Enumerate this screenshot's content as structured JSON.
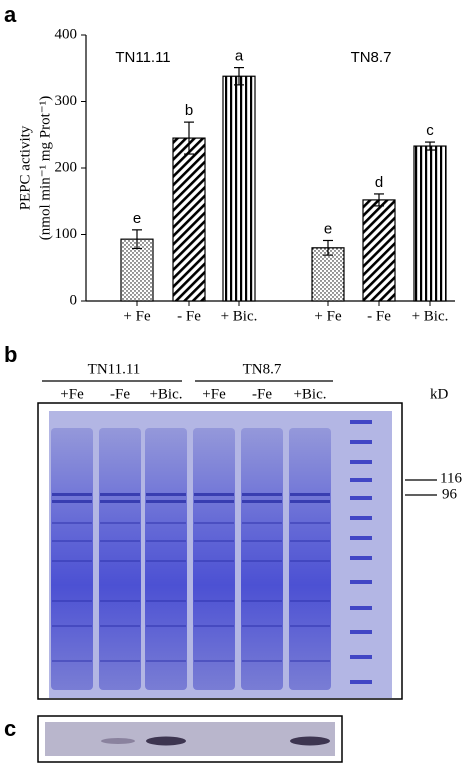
{
  "chart_data": {
    "type": "bar",
    "panel_label": "a",
    "y_label": [
      "PEPC activity",
      "(nmol min⁻¹ mg Prot⁻¹)"
    ],
    "groups": [
      "TN11.11",
      "TN8.7"
    ],
    "categories": [
      "+ Fe",
      "- Fe",
      "+ Bic.",
      "+ Fe",
      "- Fe",
      "+ Bic."
    ],
    "values": [
      93,
      245,
      338,
      80,
      152,
      233
    ],
    "errors": [
      14,
      24,
      13,
      11,
      9,
      6
    ],
    "annotations": [
      "e",
      "b",
      "a",
      "e",
      "d",
      "c"
    ],
    "patterns": [
      "dots",
      "hatch",
      "stripes",
      "dots",
      "hatch",
      "stripes"
    ],
    "color": "#000000",
    "ylim": [
      0,
      400
    ],
    "yticks": [
      0,
      100,
      200,
      300,
      400
    ],
    "grid": false
  },
  "gel": {
    "panel_label": "b",
    "groups": [
      "TN11.11",
      "TN8.7"
    ],
    "lanes": [
      "+Fe",
      "-Fe",
      "+Bic.",
      "+Fe",
      "-Fe",
      "+Bic."
    ],
    "unit": "kD",
    "markers": [
      116,
      96
    ]
  },
  "blot": {
    "panel_label": "c"
  }
}
